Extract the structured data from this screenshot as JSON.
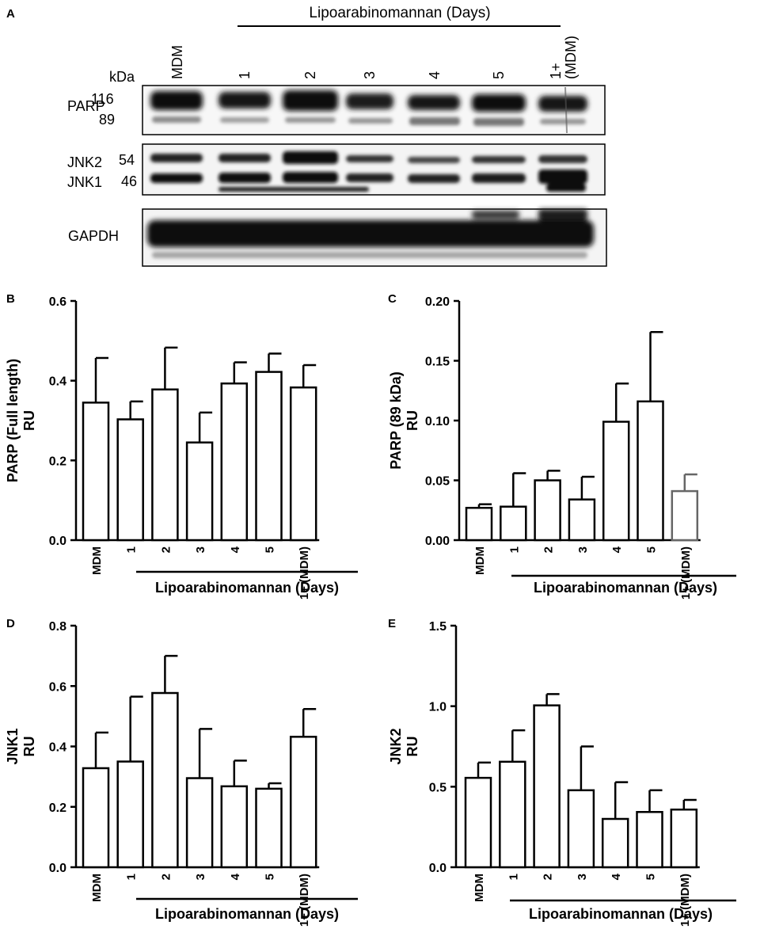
{
  "blot": {
    "panel_letter": "A",
    "header": "Lipoarabinomannan (Days)",
    "kda_label": "kDa",
    "lanes": [
      "MDM",
      "1",
      "2",
      "3",
      "4",
      "5",
      "1+\n(MDM)"
    ],
    "strips": [
      {
        "name": "PARP",
        "labels": [
          "PARP"
        ],
        "markers": [
          "116",
          "89"
        ]
      },
      {
        "name": "JNK",
        "labels": [
          "JNK2",
          "JNK1"
        ],
        "markers": [
          "54",
          "46"
        ]
      },
      {
        "name": "GAPDH",
        "labels": [
          "GAPDH"
        ],
        "markers": []
      }
    ]
  },
  "chart_data": [
    {
      "panel": "B",
      "type": "bar",
      "ylabel": "PARP  (Full length)\nRU",
      "xlabel": "Lipoarabinomannan (Days)",
      "categories": [
        "MDM",
        "1",
        "2",
        "3",
        "4",
        "5",
        "1+ (MDM)"
      ],
      "values": [
        0.345,
        0.303,
        0.378,
        0.245,
        0.393,
        0.422,
        0.383
      ],
      "errors": [
        0.112,
        0.045,
        0.105,
        0.075,
        0.053,
        0.046,
        0.056
      ],
      "ylim": [
        0,
        0.6
      ],
      "yticks": [
        "0.0",
        "0.2",
        "0.4",
        "0.6"
      ]
    },
    {
      "panel": "C",
      "type": "bar",
      "ylabel": "PARP  (89 kDa)\nRU",
      "xlabel": "Lipoarabinomannan (Days)",
      "categories": [
        "MDM",
        "1",
        "2",
        "3",
        "4",
        "5",
        "1+ (MDM)"
      ],
      "values": [
        0.027,
        0.028,
        0.05,
        0.034,
        0.099,
        0.116,
        0.041
      ],
      "errors": [
        0.003,
        0.028,
        0.008,
        0.019,
        0.032,
        0.058,
        0.014
      ],
      "ylim": [
        0,
        0.2
      ],
      "yticks": [
        "0.00",
        "0.05",
        "0.10",
        "0.15",
        "0.20"
      ],
      "bar_colors": [
        "#000000",
        "#000000",
        "#000000",
        "#000000",
        "#000000",
        "#000000",
        "#666666"
      ]
    },
    {
      "panel": "D",
      "type": "bar",
      "ylabel": "JNK1\nRU",
      "xlabel": "Lipoarabinomannan (Days)",
      "categories": [
        "MDM",
        "1",
        "2",
        "3",
        "4",
        "5",
        "1+ (MDM)"
      ],
      "values": [
        0.328,
        0.35,
        0.577,
        0.295,
        0.268,
        0.26,
        0.432
      ],
      "errors": [
        0.118,
        0.215,
        0.123,
        0.163,
        0.085,
        0.018,
        0.092
      ],
      "ylim": [
        0,
        0.8
      ],
      "yticks": [
        "0.0",
        "0.2",
        "0.4",
        "0.6",
        "0.8"
      ]
    },
    {
      "panel": "E",
      "type": "bar",
      "ylabel": "JNK2\nRU",
      "xlabel": "Lipoarabinomannan (Days)",
      "categories": [
        "MDM",
        "1",
        "2",
        "3",
        "4",
        "5",
        "1+ (MDM)"
      ],
      "values": [
        0.555,
        0.655,
        1.005,
        0.478,
        0.3,
        0.343,
        0.358
      ],
      "errors": [
        0.095,
        0.195,
        0.07,
        0.272,
        0.228,
        0.135,
        0.06
      ],
      "ylim": [
        0,
        1.5
      ],
      "yticks": [
        "0.0",
        "0.5",
        "1.0",
        "1.5"
      ]
    }
  ]
}
